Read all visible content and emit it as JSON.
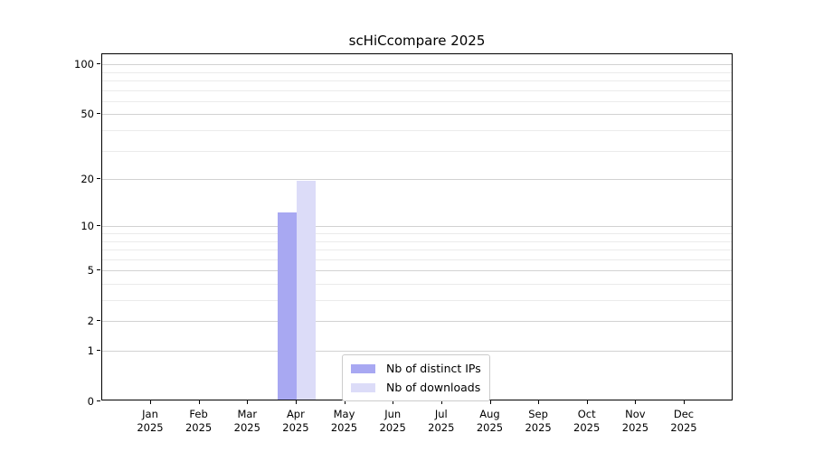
{
  "figure": {
    "title": "scHiCcompare 2025"
  },
  "chart_data": {
    "type": "bar",
    "title": "scHiCcompare 2025",
    "xlabel": "",
    "ylabel": "",
    "categories": [
      "Jan 2025",
      "Feb 2025",
      "Mar 2025",
      "Apr 2025",
      "May 2025",
      "Jun 2025",
      "Jul 2025",
      "Aug 2025",
      "Sep 2025",
      "Oct 2025",
      "Nov 2025",
      "Dec 2025"
    ],
    "series": [
      {
        "name": "Nb of distinct IPs",
        "color": "#a8a8f2",
        "values": [
          0,
          0,
          0,
          12,
          0,
          0,
          0,
          0,
          0,
          0,
          0,
          0
        ]
      },
      {
        "name": "Nb of downloads",
        "color": "#dcdcf8",
        "values": [
          0,
          0,
          0,
          19,
          0,
          0,
          0,
          0,
          0,
          0,
          0,
          0
        ]
      }
    ],
    "y_scale": "log1p",
    "y_ticks": [
      0,
      1,
      2,
      5,
      10,
      20,
      50,
      100
    ],
    "y_minor_gridlines": [
      3,
      4,
      6,
      7,
      8,
      9,
      30,
      40,
      60,
      70,
      80,
      90
    ],
    "ylim": [
      0,
      115
    ],
    "grid": true,
    "legend_position": "inside-bottom-center"
  },
  "colors": {
    "background": "#ffffff",
    "spine": "#000000",
    "major_grid": "#d2d2d2",
    "minor_grid": "#ebebeb",
    "text": "#000000",
    "legend_border": "#cccccc"
  }
}
